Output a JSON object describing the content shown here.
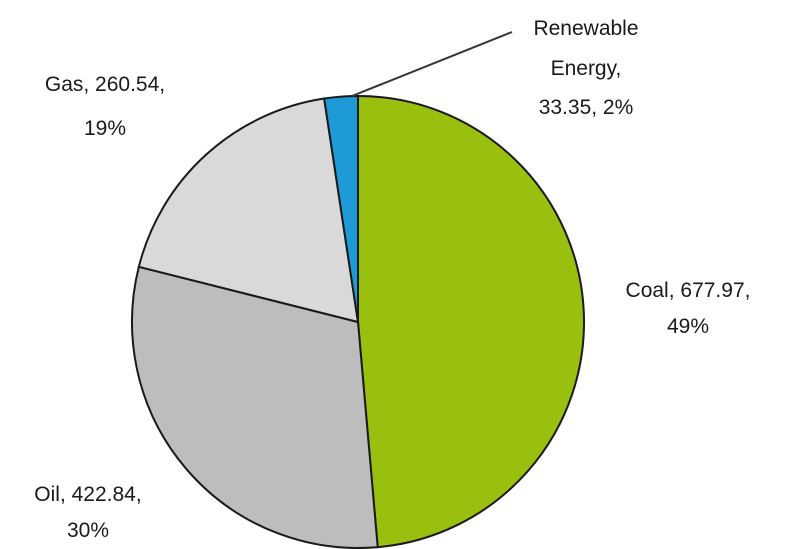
{
  "chart_data": {
    "type": "pie",
    "title": "",
    "slices": [
      {
        "name": "Coal",
        "value_text": "677.97,",
        "percent_text": "49%",
        "value": 677.97,
        "percent": 49,
        "color": "#99c00e"
      },
      {
        "name": "Oil",
        "value_text": "422.84,",
        "percent_text": "30%",
        "value": 422.84,
        "percent": 30,
        "color": "#bdbdbd"
      },
      {
        "name": "Gas",
        "value_text": "260.54,",
        "percent_text": "19%",
        "value": 260.54,
        "percent": 19,
        "color": "#d9d9d9"
      },
      {
        "name": "Renewable Energy",
        "value_text": "33.35, 2%",
        "percent_text": "2%",
        "value": 33.35,
        "percent": 2,
        "color": "#1e9ad6"
      }
    ]
  },
  "labels": {
    "coal": {
      "line1": "Coal, 677.97,",
      "line2": "49%"
    },
    "oil": {
      "line1": "Oil, 422.84,",
      "line2": "30%"
    },
    "gas": {
      "line1": "Gas, 260.54,",
      "line2": "19%"
    },
    "renewable": {
      "line1": "Renewable",
      "line2": "Energy,",
      "line3": "33.35, 2%"
    }
  }
}
